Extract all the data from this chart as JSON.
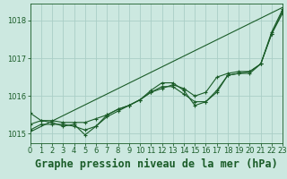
{
  "background_color": "#cce8e0",
  "grid_color": "#aacec6",
  "line_color": "#1a5c28",
  "title": "Graphe pression niveau de la mer (hPa)",
  "xlim": [
    0,
    23
  ],
  "ylim": [
    1014.75,
    1018.45
  ],
  "yticks": [
    1015,
    1016,
    1017,
    1018
  ],
  "xticks": [
    0,
    1,
    2,
    3,
    4,
    5,
    6,
    7,
    8,
    9,
    10,
    11,
    12,
    13,
    14,
    15,
    16,
    17,
    18,
    19,
    20,
    21,
    22,
    23
  ],
  "series": [
    {
      "x": [
        0,
        23
      ],
      "y": [
        1015.05,
        1018.35
      ],
      "marker": false
    },
    {
      "x": [
        0,
        1,
        2,
        3,
        4,
        5,
        6,
        7,
        8,
        9,
        10,
        11,
        12,
        13,
        14,
        15,
        16,
        17,
        18,
        19,
        20,
        21,
        22,
        23
      ],
      "y": [
        1015.55,
        1015.35,
        1015.3,
        1015.2,
        1015.25,
        1014.97,
        1015.2,
        1015.5,
        1015.65,
        1015.75,
        1015.9,
        1016.15,
        1016.35,
        1016.35,
        1016.15,
        1015.75,
        1015.85,
        1016.1,
        1016.55,
        1016.6,
        1016.65,
        1016.85,
        1017.7,
        1018.3
      ],
      "marker": true
    },
    {
      "x": [
        0,
        1,
        2,
        3,
        4,
        5,
        6,
        7,
        8,
        9,
        10,
        11,
        12,
        13,
        14,
        15,
        16,
        17,
        18,
        19,
        20,
        21,
        22,
        23
      ],
      "y": [
        1015.1,
        1015.25,
        1015.25,
        1015.25,
        1015.2,
        1015.1,
        1015.2,
        1015.45,
        1015.6,
        1015.75,
        1015.9,
        1016.1,
        1016.25,
        1016.25,
        1016.05,
        1015.85,
        1015.85,
        1016.15,
        1016.55,
        1016.6,
        1016.6,
        1016.85,
        1017.65,
        1018.25
      ],
      "marker": true
    },
    {
      "x": [
        0,
        1,
        2,
        3,
        4,
        5,
        6,
        7,
        8,
        9,
        10,
        11,
        12,
        13,
        14,
        15,
        16,
        17,
        18,
        19,
        20,
        21,
        22,
        23
      ],
      "y": [
        1015.25,
        1015.35,
        1015.35,
        1015.3,
        1015.3,
        1015.3,
        1015.4,
        1015.5,
        1015.65,
        1015.75,
        1015.9,
        1016.1,
        1016.2,
        1016.3,
        1016.2,
        1016.0,
        1016.1,
        1016.5,
        1016.6,
        1016.65,
        1016.65,
        1016.85,
        1017.65,
        1018.2
      ],
      "marker": true
    }
  ],
  "title_fontsize": 8.5,
  "tick_fontsize": 6.0
}
